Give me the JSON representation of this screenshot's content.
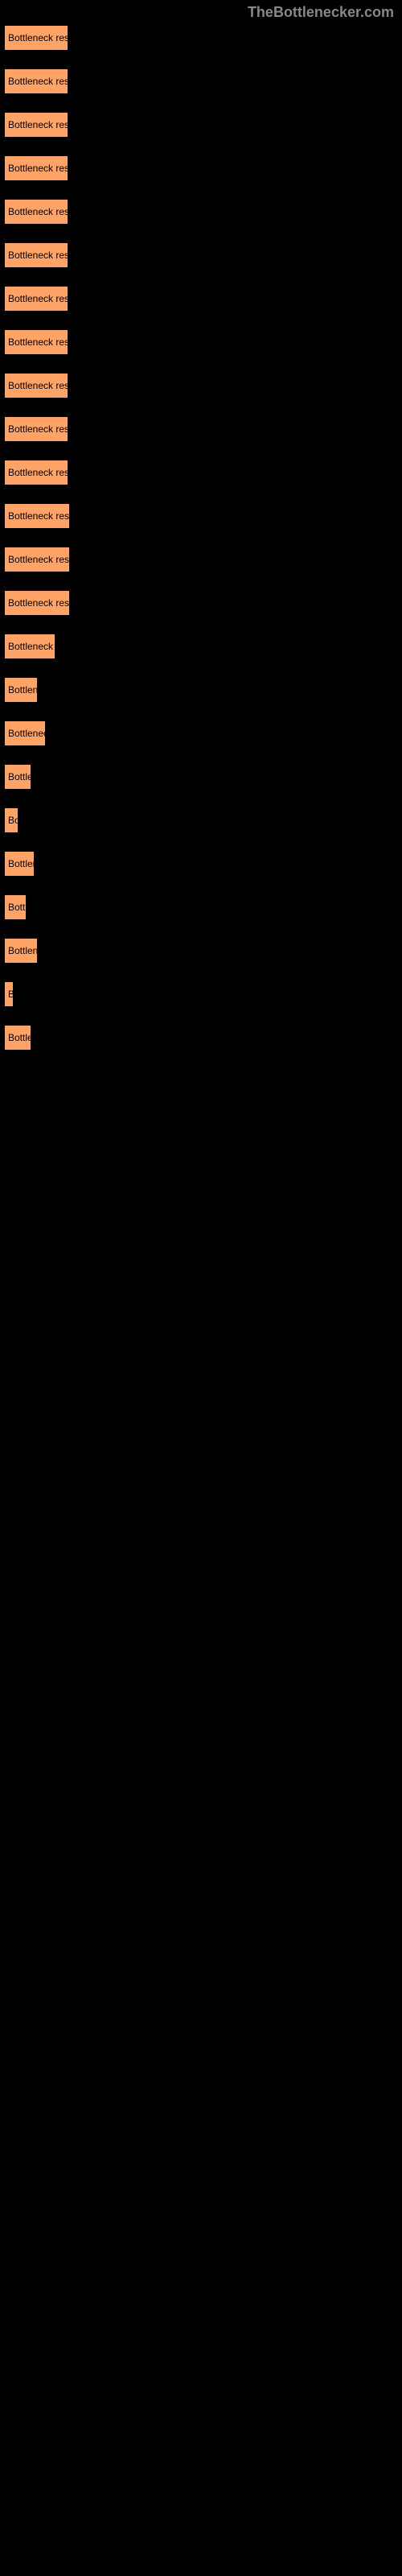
{
  "header": {
    "site_name": "TheBottlenecker.com"
  },
  "buttons": [
    {
      "label": "Bottleneck result",
      "width": 80
    },
    {
      "label": "Bottleneck result",
      "width": 80
    },
    {
      "label": "Bottleneck result",
      "width": 80
    },
    {
      "label": "Bottleneck result",
      "width": 80
    },
    {
      "label": "Bottleneck result",
      "width": 80
    },
    {
      "label": "Bottleneck result",
      "width": 80
    },
    {
      "label": "Bottleneck result",
      "width": 80
    },
    {
      "label": "Bottleneck result",
      "width": 80
    },
    {
      "label": "Bottleneck result",
      "width": 80
    },
    {
      "label": "Bottleneck result",
      "width": 80
    },
    {
      "label": "Bottleneck result",
      "width": 80
    },
    {
      "label": "Bottleneck result",
      "width": 82
    },
    {
      "label": "Bottleneck result",
      "width": 82
    },
    {
      "label": "Bottleneck result",
      "width": 82
    },
    {
      "label": "Bottleneck re",
      "width": 64
    },
    {
      "label": "Bottlene",
      "width": 42
    },
    {
      "label": "Bottleneck",
      "width": 52
    },
    {
      "label": "Bottle",
      "width": 34
    },
    {
      "label": "Bo",
      "width": 18
    },
    {
      "label": "Bottlen",
      "width": 38
    },
    {
      "label": "Bottl",
      "width": 28
    },
    {
      "label": "Bottlene",
      "width": 42
    },
    {
      "label": "B",
      "width": 12
    },
    {
      "label": "Bottle",
      "width": 34
    }
  ],
  "colors": {
    "background": "#000000",
    "button_bg": "#ffa366",
    "button_text": "#000000",
    "header_text": "#888888"
  }
}
